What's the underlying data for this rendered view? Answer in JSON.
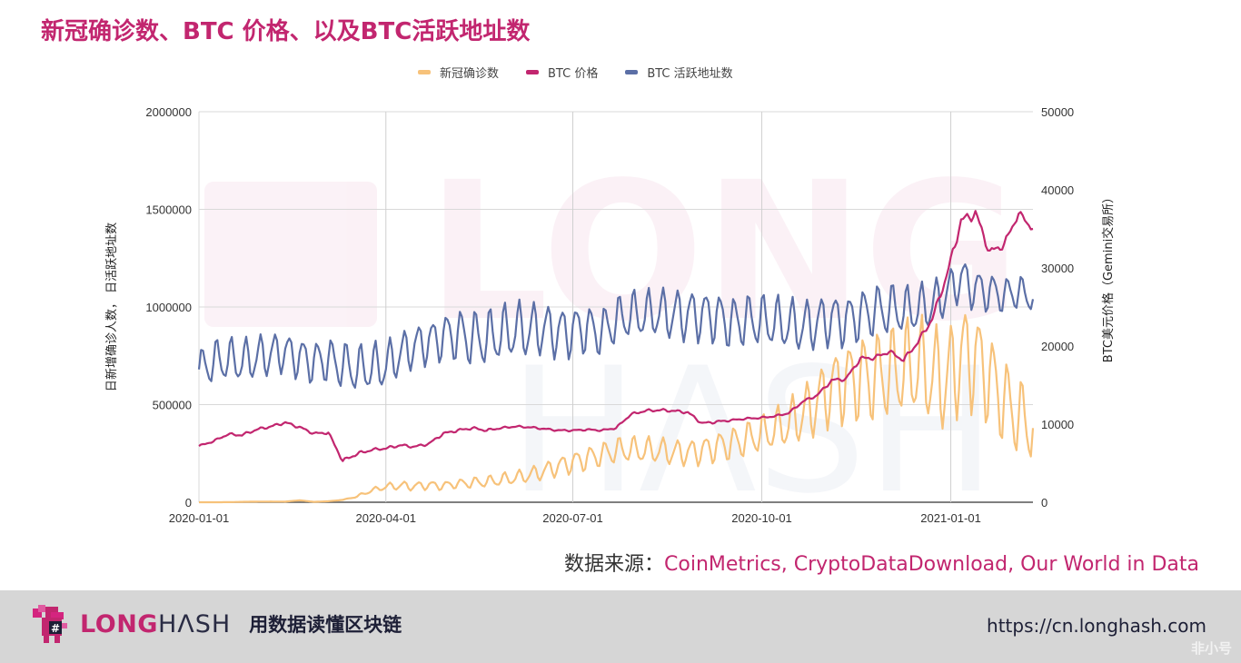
{
  "title": "新冠确诊数、BTC 价格、以及BTC活跃地址数",
  "legend": [
    {
      "label": "新冠确诊数",
      "color": "#f7c27a"
    },
    {
      "label": "BTC 价格",
      "color": "#c2266f"
    },
    {
      "label": "BTC 活跃地址数",
      "color": "#5b6fa6"
    }
  ],
  "source": {
    "prefix": "数据来源：",
    "list": "CoinMetrics, CryptoDataDownload, Our World in Data"
  },
  "footer": {
    "brand_long": "LONG",
    "brand_hash": "HΛSH",
    "tagline": "用数据读懂区块链",
    "url": "https://cn.longhash.com",
    "watermark": "非小号"
  },
  "chart_data": {
    "type": "line",
    "title": "新冠确诊数、BTC 价格、以及BTC活跃地址数",
    "xlabel": "",
    "ylabel_left": "日新增确诊人数， 日活跃地址数",
    "ylabel_right": "BTC美元价格（Gemini交易所）",
    "x_ticks": [
      "2020-01-01",
      "2020-04-01",
      "2020-07-01",
      "2020-10-01",
      "2021-01-01"
    ],
    "x_range": [
      "2020-01-01",
      "2021-02-10"
    ],
    "y_left_ticks": [
      0,
      500000,
      1000000,
      1500000,
      2000000
    ],
    "y_left_lim": [
      0,
      2000000
    ],
    "y_right_ticks": [
      0,
      10000,
      20000,
      30000,
      40000,
      50000
    ],
    "y_right_lim": [
      0,
      50000
    ],
    "grid": true,
    "legend_position": "top",
    "x_weeks": [
      "2020-01-01",
      "2020-01-08",
      "2020-01-15",
      "2020-01-22",
      "2020-01-29",
      "2020-02-05",
      "2020-02-12",
      "2020-02-19",
      "2020-02-26",
      "2020-03-04",
      "2020-03-11",
      "2020-03-18",
      "2020-03-25",
      "2020-04-01",
      "2020-04-08",
      "2020-04-15",
      "2020-04-22",
      "2020-04-29",
      "2020-05-06",
      "2020-05-13",
      "2020-05-20",
      "2020-05-27",
      "2020-06-03",
      "2020-06-10",
      "2020-06-17",
      "2020-06-24",
      "2020-07-01",
      "2020-07-08",
      "2020-07-15",
      "2020-07-22",
      "2020-07-29",
      "2020-08-05",
      "2020-08-12",
      "2020-08-19",
      "2020-08-26",
      "2020-09-02",
      "2020-09-09",
      "2020-09-16",
      "2020-09-23",
      "2020-09-30",
      "2020-10-07",
      "2020-10-14",
      "2020-10-21",
      "2020-10-28",
      "2020-11-04",
      "2020-11-11",
      "2020-11-18",
      "2020-11-25",
      "2020-12-02",
      "2020-12-09",
      "2020-12-16",
      "2020-12-23",
      "2020-12-30",
      "2021-01-06",
      "2021-01-13",
      "2021-01-20",
      "2021-01-27",
      "2021-02-03",
      "2021-02-10"
    ],
    "series": [
      {
        "name": "新冠确诊数",
        "axis": "left",
        "color": "#f7c27a",
        "values": [
          0,
          100,
          300,
          2000,
          3000,
          3500,
          3000,
          10000,
          2000,
          5000,
          12000,
          30000,
          60000,
          80000,
          85000,
          82000,
          88000,
          85000,
          95000,
          100000,
          105000,
          115000,
          125000,
          140000,
          160000,
          185000,
          205000,
          225000,
          245000,
          265000,
          270000,
          265000,
          265000,
          255000,
          255000,
          265000,
          285000,
          300000,
          320000,
          345000,
          370000,
          400000,
          450000,
          510000,
          590000,
          620000,
          640000,
          640000,
          660000,
          680000,
          690000,
          650000,
          620000,
          750000,
          740000,
          640000,
          520000,
          440000,
          380000
        ],
        "amplitude": [
          0,
          0,
          0,
          0,
          0,
          0,
          0,
          0,
          0,
          0,
          0,
          5000,
          10000,
          15000,
          20000,
          20000,
          20000,
          20000,
          20000,
          25000,
          25000,
          30000,
          30000,
          35000,
          40000,
          45000,
          50000,
          55000,
          55000,
          60000,
          60000,
          60000,
          60000,
          60000,
          60000,
          65000,
          70000,
          75000,
          80000,
          85000,
          95000,
          110000,
          130000,
          150000,
          170000,
          190000,
          200000,
          210000,
          210000,
          220000,
          230000,
          230000,
          240000,
          250000,
          240000,
          220000,
          200000,
          180000,
          170000
        ]
      },
      {
        "name": "BTC 价格",
        "axis": "right",
        "color": "#c2266f",
        "values": [
          7200,
          7800,
          8700,
          8600,
          9300,
          9700,
          10200,
          9600,
          8800,
          8900,
          5300,
          6200,
          6700,
          6900,
          7300,
          7100,
          7500,
          8800,
          9200,
          9500,
          9200,
          9500,
          9700,
          9600,
          9400,
          9200,
          9200,
          9300,
          9200,
          9500,
          11200,
          11700,
          11800,
          11700,
          11500,
          10100,
          10300,
          10500,
          10700,
          10800,
          11000,
          11400,
          12900,
          13700,
          15600,
          15800,
          18400,
          18500,
          19300,
          18200,
          20500,
          23500,
          29000,
          36000,
          37000,
          32000,
          33000,
          37000,
          35000
        ],
        "amplitude": [
          200,
          200,
          300,
          300,
          300,
          300,
          300,
          300,
          300,
          300,
          400,
          400,
          300,
          300,
          300,
          300,
          300,
          300,
          300,
          300,
          300,
          200,
          200,
          200,
          200,
          200,
          200,
          200,
          200,
          200,
          300,
          300,
          300,
          300,
          300,
          300,
          300,
          200,
          200,
          200,
          200,
          200,
          300,
          300,
          400,
          400,
          500,
          500,
          500,
          500,
          600,
          700,
          900,
          1200,
          1200,
          1000,
          900,
          800,
          800
        ]
      },
      {
        "name": "BTC 活跃地址数",
        "axis": "left",
        "color": "#5b6fa6",
        "values": [
          680000,
          720000,
          730000,
          720000,
          740000,
          760000,
          770000,
          740000,
          720000,
          730000,
          700000,
          680000,
          690000,
          700000,
          760000,
          800000,
          820000,
          850000,
          860000,
          840000,
          840000,
          860000,
          880000,
          880000,
          890000,
          870000,
          880000,
          890000,
          870000,
          930000,
          960000,
          960000,
          970000,
          960000,
          960000,
          960000,
          950000,
          920000,
          930000,
          930000,
          920000,
          910000,
          900000,
          920000,
          940000,
          930000,
          960000,
          980000,
          990000,
          980000,
          990000,
          1010000,
          1070000,
          1150000,
          1090000,
          1080000,
          1060000,
          1080000,
          1040000
        ],
        "amplitude": [
          90000,
          100000,
          100000,
          100000,
          100000,
          100000,
          90000,
          100000,
          100000,
          100000,
          110000,
          110000,
          110000,
          110000,
          100000,
          100000,
          100000,
          110000,
          120000,
          130000,
          130000,
          130000,
          130000,
          130000,
          120000,
          120000,
          120000,
          110000,
          110000,
          110000,
          110000,
          110000,
          110000,
          120000,
          120000,
          120000,
          120000,
          120000,
          120000,
          120000,
          120000,
          120000,
          120000,
          120000,
          120000,
          120000,
          120000,
          120000,
          120000,
          110000,
          110000,
          110000,
          100000,
          100000,
          100000,
          90000,
          80000,
          80000,
          60000
        ]
      }
    ]
  }
}
